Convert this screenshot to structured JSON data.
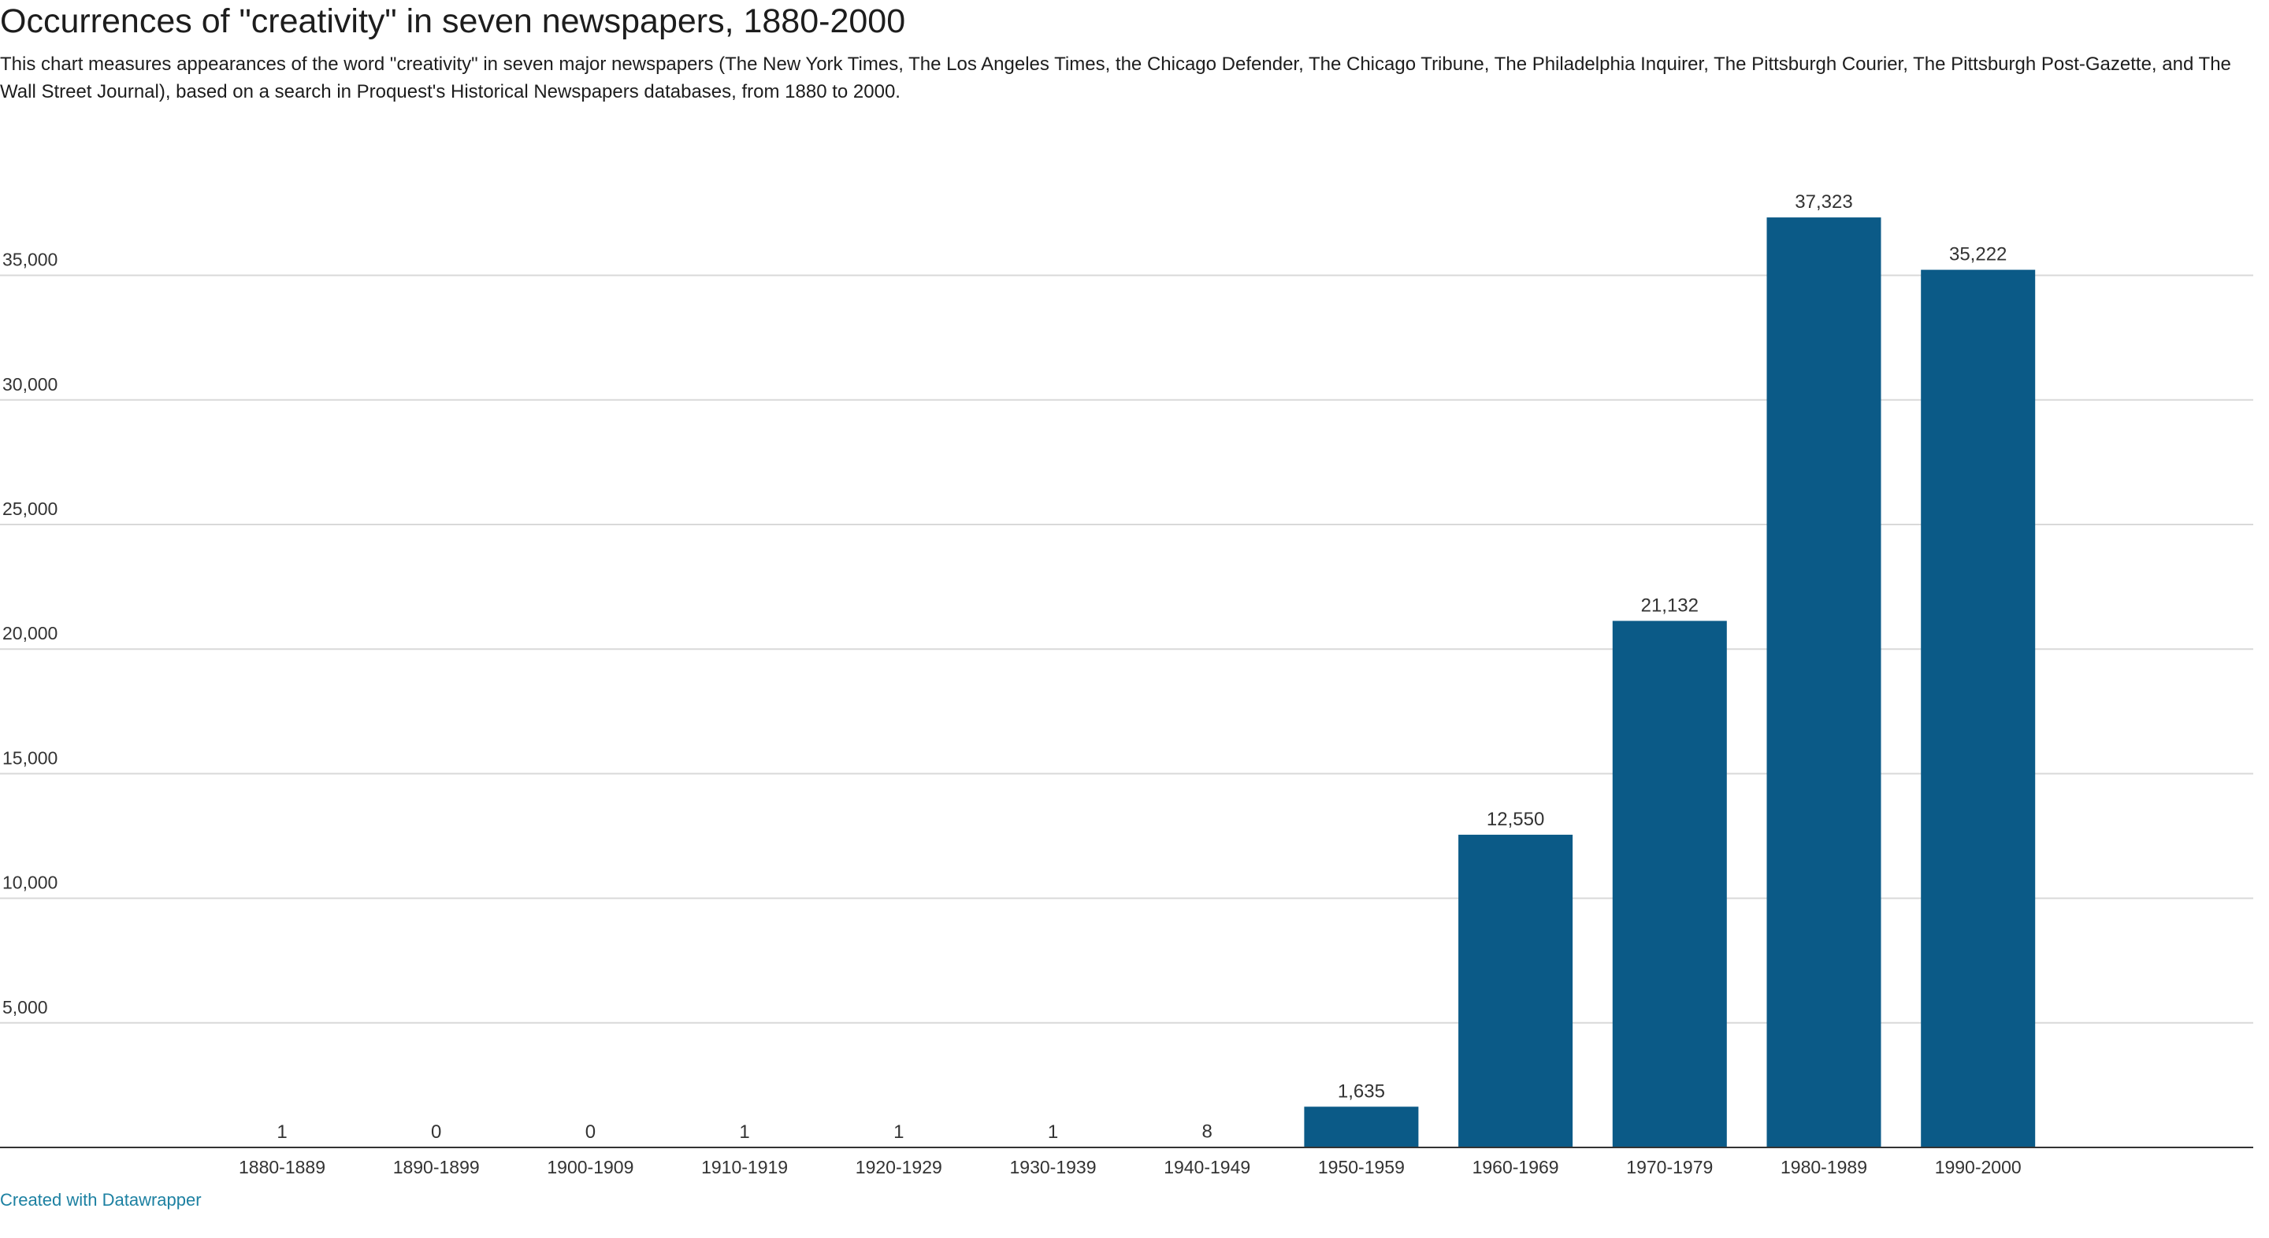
{
  "title": "Occurrences of \"creativity\" in seven newspapers, 1880-2000",
  "description": "This chart measures appearances of the word \"creativity\" in seven major newspapers (The New York Times, The Los Angeles Times, the Chicago Defender, The Chicago Tribune, The Philadelphia Inquirer, The Pittsburgh Courier, The Pittsburgh Post-Gazette, and The Wall Street Journal), based on a search in Proquest's Historical Newspapers databases, from 1880 to 2000.",
  "footer": {
    "credit": "Created with Datawrapper"
  },
  "colors": {
    "bar": "#0b5a87",
    "grid": "#d9d9d9",
    "axis": "#333333",
    "link": "#1d81a2"
  },
  "chart_data": {
    "type": "bar",
    "title": "Occurrences of \"creativity\" in seven newspapers, 1880-2000",
    "xlabel": "",
    "ylabel": "",
    "ylim": [
      0,
      38000
    ],
    "grid": true,
    "yticks": [
      5000,
      10000,
      15000,
      20000,
      25000,
      30000,
      35000
    ],
    "ytick_labels": [
      "5,000",
      "10,000",
      "15,000",
      "20,000",
      "25,000",
      "30,000",
      "35,000"
    ],
    "categories": [
      "1880-1889",
      "1890-1899",
      "1900-1909",
      "1910-1919",
      "1920-1929",
      "1930-1939",
      "1940-1949",
      "1950-1959",
      "1960-1969",
      "1970-1979",
      "1980-1989",
      "1990-2000"
    ],
    "values": [
      1,
      0,
      0,
      1,
      1,
      1,
      8,
      1635,
      12550,
      21132,
      37323,
      35222
    ],
    "value_labels": [
      "1",
      "0",
      "0",
      "1",
      "1",
      "1",
      "8",
      "1,635",
      "12,550",
      "21,132",
      "37,323",
      "35,222"
    ]
  }
}
